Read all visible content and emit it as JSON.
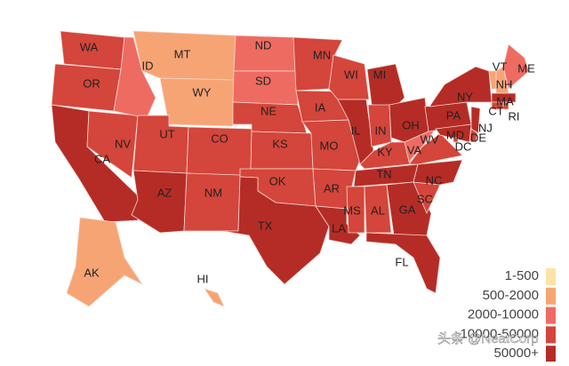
{
  "states": [
    {
      "label": "WA",
      "color": "#d4453b"
    },
    {
      "label": "OR",
      "color": "#d4453b"
    },
    {
      "label": "CA",
      "color": "#b52c26"
    },
    {
      "label": "NV",
      "color": "#d4453b"
    },
    {
      "label": "ID",
      "color": "#ee6b62"
    },
    {
      "label": "MT",
      "color": "#f7a474"
    },
    {
      "label": "WY",
      "color": "#f7a474"
    },
    {
      "label": "UT",
      "color": "#d4453b"
    },
    {
      "label": "CO",
      "color": "#d4453b"
    },
    {
      "label": "AZ",
      "color": "#b52c26"
    },
    {
      "label": "NM",
      "color": "#d4453b"
    },
    {
      "label": "ND",
      "color": "#ee6b62"
    },
    {
      "label": "SD",
      "color": "#ee6b62"
    },
    {
      "label": "NE",
      "color": "#d4453b"
    },
    {
      "label": "KS",
      "color": "#d4453b"
    },
    {
      "label": "OK",
      "color": "#d4453b"
    },
    {
      "label": "TX",
      "color": "#b52c26"
    },
    {
      "label": "MN",
      "color": "#d4453b"
    },
    {
      "label": "IA",
      "color": "#d4453b"
    },
    {
      "label": "MO",
      "color": "#d4453b"
    },
    {
      "label": "AR",
      "color": "#d4453b"
    },
    {
      "label": "LA",
      "color": "#b52c26"
    },
    {
      "label": "WI",
      "color": "#d4453b"
    },
    {
      "label": "IL",
      "color": "#b52c26"
    },
    {
      "label": "MI",
      "color": "#b52c26"
    },
    {
      "label": "IN",
      "color": "#d4453b"
    },
    {
      "label": "OH",
      "color": "#b52c26"
    },
    {
      "label": "KY",
      "color": "#d4453b"
    },
    {
      "label": "TN",
      "color": "#b52c26"
    },
    {
      "label": "MS",
      "color": "#d4453b"
    },
    {
      "label": "AL",
      "color": "#d4453b"
    },
    {
      "label": "GA",
      "color": "#b52c26"
    },
    {
      "label": "FL",
      "color": "#b52c26"
    },
    {
      "label": "SC",
      "color": "#d4453b"
    },
    {
      "label": "NC",
      "color": "#b52c26"
    },
    {
      "label": "VA",
      "color": "#d4453b"
    },
    {
      "label": "WV",
      "color": "#ee6b62"
    },
    {
      "label": "PA",
      "color": "#b52c26"
    },
    {
      "label": "NY",
      "color": "#b52c26"
    },
    {
      "label": "VT",
      "color": "#f7a474"
    },
    {
      "label": "NH",
      "color": "#f7a474"
    },
    {
      "label": "ME",
      "color": "#ee6b62"
    },
    {
      "label": "MA",
      "color": "#b52c26"
    },
    {
      "label": "CT",
      "color": "#d4453b"
    },
    {
      "label": "RI",
      "color": "#d4453b"
    },
    {
      "label": "NJ",
      "color": "#b52c26"
    },
    {
      "label": "DE",
      "color": "#d4453b"
    },
    {
      "label": "MD",
      "color": "#b52c26"
    },
    {
      "label": "DC",
      "color": "#d4453b"
    },
    {
      "label": "AK",
      "color": "#f7a474"
    },
    {
      "label": "HI",
      "color": "#f7a474"
    }
  ],
  "legend": {
    "items": [
      {
        "label": "1-500",
        "color": "#fde3a7"
      },
      {
        "label": "500-2000",
        "color": "#f7a474"
      },
      {
        "label": "2000-10000",
        "color": "#ee6b62"
      },
      {
        "label": "10000-50000",
        "color": "#d4453b"
      },
      {
        "label": "50000+",
        "color": "#b52c26"
      }
    ]
  },
  "watermark": "头条 @NeatCorp"
}
